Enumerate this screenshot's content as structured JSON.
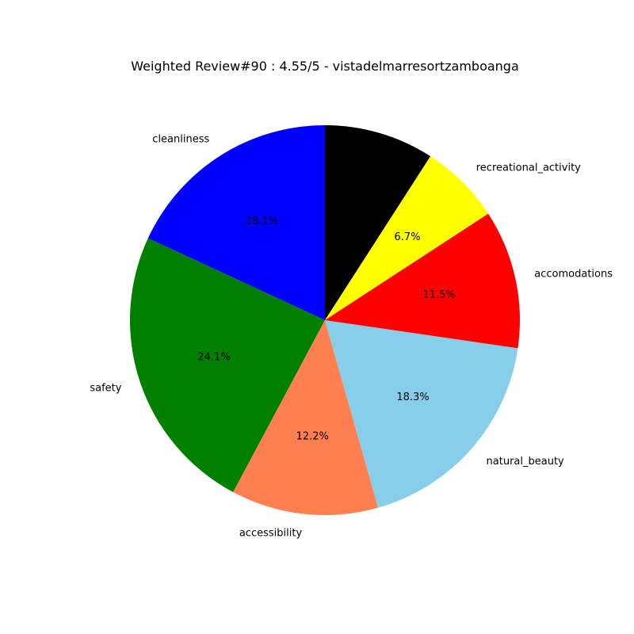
{
  "chart_data": {
    "type": "pie",
    "title": "Weighted Review#90 : 4.55/5 - vistadelmarresortzamboanga",
    "start_angle_deg": 90,
    "direction": "counterclockwise",
    "slices": [
      {
        "label": "cleanliness",
        "value": 18.1,
        "pct_text": "18.1%",
        "color": "#0000ff"
      },
      {
        "label": "safety",
        "value": 24.1,
        "pct_text": "24.1%",
        "color": "#008000"
      },
      {
        "label": "accessibility",
        "value": 12.2,
        "pct_text": "12.2%",
        "color": "#ff7f50"
      },
      {
        "label": "natural_beauty",
        "value": 18.3,
        "pct_text": "18.3%",
        "color": "#87ceeb"
      },
      {
        "label": "accomodations",
        "value": 11.5,
        "pct_text": "11.5%",
        "color": "#ff0000"
      },
      {
        "label": "recreational_activity",
        "value": 6.7,
        "pct_text": "6.7%",
        "color": "#ffff00"
      },
      {
        "label": "",
        "value": 9.1,
        "pct_text": "",
        "color": "#000000"
      }
    ]
  }
}
